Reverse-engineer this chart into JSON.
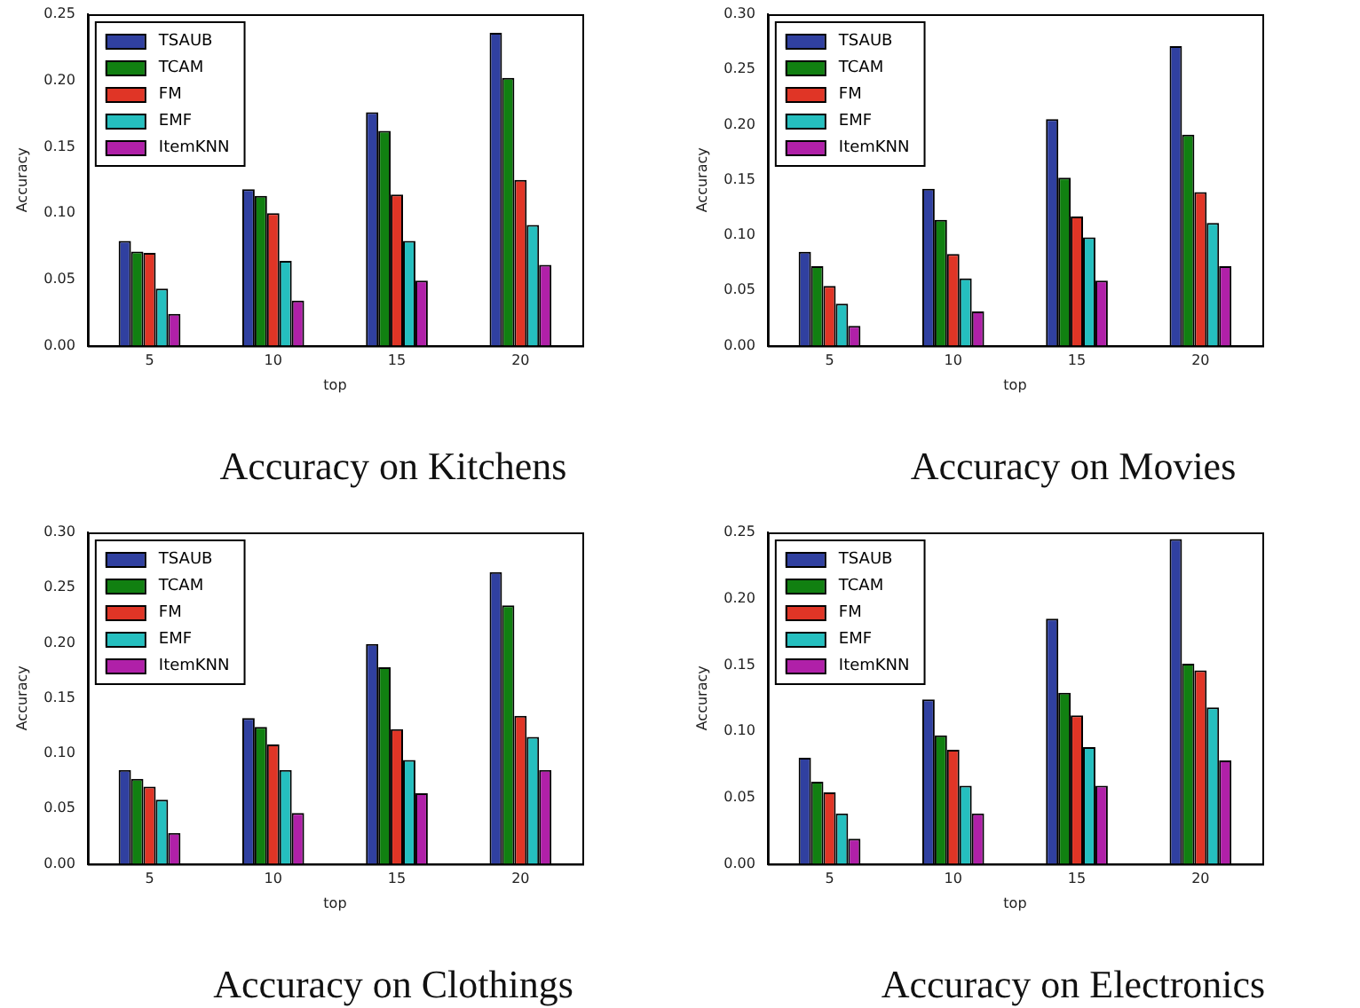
{
  "chart_data": [
    {
      "type": "bar",
      "title": "Accuracy on Kitchens",
      "xlabel": "top",
      "ylabel": "Accuracy",
      "categories": [
        "5",
        "10",
        "15",
        "20"
      ],
      "legend": "top left",
      "ylim": [
        0,
        0.25
      ],
      "yticks": [
        {
          "value": 0,
          "label": "0.00"
        },
        {
          "value": 0.05,
          "label": "0.05"
        },
        {
          "value": 0.1,
          "label": "0.10"
        },
        {
          "value": 0.15,
          "label": "0.15"
        },
        {
          "value": 0.2,
          "label": "0.20"
        },
        {
          "value": 0.25,
          "label": "0.25"
        }
      ],
      "series": [
        {
          "name": "TSAUB",
          "color": "#3040a0",
          "values": [
            0.079,
            0.118,
            0.176,
            0.236
          ]
        },
        {
          "name": "TCAM",
          "color": "#118011",
          "values": [
            0.071,
            0.113,
            0.162,
            0.202
          ]
        },
        {
          "name": "FM",
          "color": "#e03526",
          "values": [
            0.07,
            0.1,
            0.114,
            0.125
          ]
        },
        {
          "name": "EMF",
          "color": "#25bfbf",
          "values": [
            0.043,
            0.064,
            0.079,
            0.091
          ]
        },
        {
          "name": "ItemKNN",
          "color": "#b020a8",
          "values": [
            0.024,
            0.034,
            0.049,
            0.061
          ]
        }
      ]
    },
    {
      "type": "bar",
      "title": "Accuracy on Movies",
      "xlabel": "top",
      "ylabel": "Accuracy",
      "categories": [
        "5",
        "10",
        "15",
        "20"
      ],
      "legend": "top left",
      "ylim": [
        0,
        0.3
      ],
      "yticks": [
        {
          "value": 0,
          "label": "0.00"
        },
        {
          "value": 0.05,
          "label": "0.05"
        },
        {
          "value": 0.1,
          "label": "0.10"
        },
        {
          "value": 0.15,
          "label": "0.15"
        },
        {
          "value": 0.2,
          "label": "0.20"
        },
        {
          "value": 0.25,
          "label": "0.25"
        },
        {
          "value": 0.3,
          "label": "0.30"
        }
      ],
      "series": [
        {
          "name": "TSAUB",
          "color": "#3040a0",
          "values": [
            0.085,
            0.142,
            0.205,
            0.271
          ]
        },
        {
          "name": "TCAM",
          "color": "#118011",
          "values": [
            0.072,
            0.114,
            0.152,
            0.191
          ]
        },
        {
          "name": "FM",
          "color": "#e03526",
          "values": [
            0.054,
            0.083,
            0.117,
            0.139
          ]
        },
        {
          "name": "EMF",
          "color": "#25bfbf",
          "values": [
            0.038,
            0.061,
            0.098,
            0.111
          ]
        },
        {
          "name": "ItemKNN",
          "color": "#b020a8",
          "values": [
            0.018,
            0.031,
            0.059,
            0.072
          ]
        }
      ]
    },
    {
      "type": "bar",
      "title": "Accuracy on Clothings",
      "xlabel": "top",
      "ylabel": "Accuracy",
      "categories": [
        "5",
        "10",
        "15",
        "20"
      ],
      "legend": "top left",
      "ylim": [
        0,
        0.3
      ],
      "yticks": [
        {
          "value": 0,
          "label": "0.00"
        },
        {
          "value": 0.05,
          "label": "0.05"
        },
        {
          "value": 0.1,
          "label": "0.10"
        },
        {
          "value": 0.15,
          "label": "0.15"
        },
        {
          "value": 0.2,
          "label": "0.20"
        },
        {
          "value": 0.25,
          "label": "0.25"
        },
        {
          "value": 0.3,
          "label": "0.30"
        }
      ],
      "series": [
        {
          "name": "TSAUB",
          "color": "#3040a0",
          "values": [
            0.085,
            0.132,
            0.199,
            0.264
          ]
        },
        {
          "name": "TCAM",
          "color": "#118011",
          "values": [
            0.077,
            0.124,
            0.178,
            0.234
          ]
        },
        {
          "name": "FM",
          "color": "#e03526",
          "values": [
            0.07,
            0.108,
            0.122,
            0.134
          ]
        },
        {
          "name": "EMF",
          "color": "#25bfbf",
          "values": [
            0.058,
            0.085,
            0.094,
            0.115
          ]
        },
        {
          "name": "ItemKNN",
          "color": "#b020a8",
          "values": [
            0.028,
            0.046,
            0.064,
            0.085
          ]
        }
      ]
    },
    {
      "type": "bar",
      "title": "Accuracy on Electronics",
      "xlabel": "top",
      "ylabel": "Accuracy",
      "categories": [
        "5",
        "10",
        "15",
        "20"
      ],
      "legend": "top left",
      "ylim": [
        0,
        0.25
      ],
      "yticks": [
        {
          "value": 0,
          "label": "0.00"
        },
        {
          "value": 0.05,
          "label": "0.05"
        },
        {
          "value": 0.1,
          "label": "0.10"
        },
        {
          "value": 0.15,
          "label": "0.15"
        },
        {
          "value": 0.2,
          "label": "0.20"
        },
        {
          "value": 0.25,
          "label": "0.25"
        }
      ],
      "series": [
        {
          "name": "TSAUB",
          "color": "#3040a0",
          "values": [
            0.08,
            0.124,
            0.185,
            0.245
          ]
        },
        {
          "name": "TCAM",
          "color": "#118011",
          "values": [
            0.062,
            0.097,
            0.129,
            0.151
          ]
        },
        {
          "name": "FM",
          "color": "#e03526",
          "values": [
            0.054,
            0.086,
            0.112,
            0.146
          ]
        },
        {
          "name": "EMF",
          "color": "#25bfbf",
          "values": [
            0.038,
            0.059,
            0.088,
            0.118
          ]
        },
        {
          "name": "ItemKNN",
          "color": "#b020a8",
          "values": [
            0.019,
            0.038,
            0.059,
            0.078
          ]
        }
      ]
    }
  ]
}
